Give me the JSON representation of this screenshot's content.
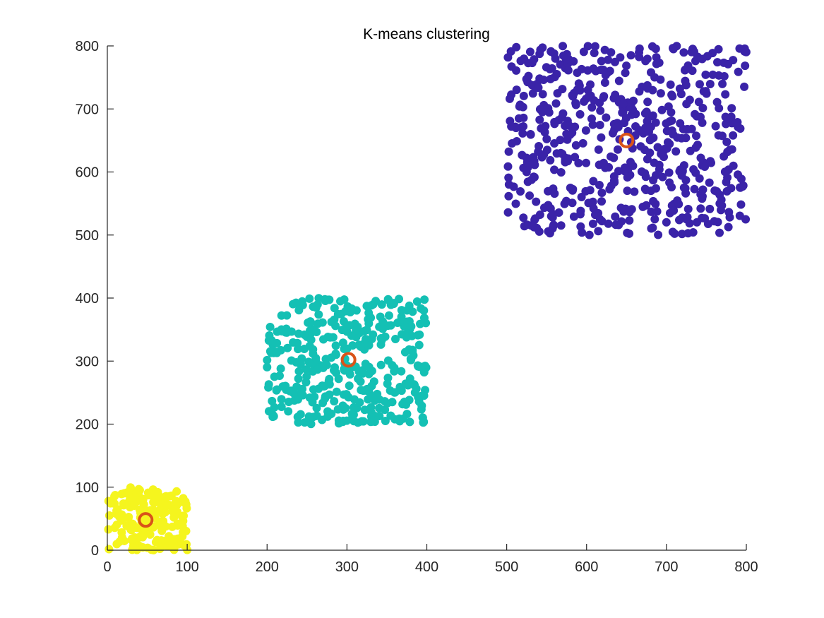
{
  "chart_data": {
    "type": "scatter",
    "title": "K-means clustering",
    "xlabel": "",
    "ylabel": "",
    "xlim": [
      0,
      800
    ],
    "ylim": [
      0,
      800
    ],
    "xticks": [
      0,
      100,
      200,
      300,
      400,
      500,
      600,
      700,
      800
    ],
    "yticks": [
      0,
      100,
      200,
      300,
      400,
      500,
      600,
      700,
      800
    ],
    "grid": false,
    "legend": "none",
    "clusters": [
      {
        "color": "#f5f51e",
        "x_range": [
          0,
          100
        ],
        "y_range": [
          0,
          100
        ],
        "approx_points": 180,
        "centroid": [
          48,
          48
        ]
      },
      {
        "color": "#14c0b4",
        "x_range": [
          200,
          400
        ],
        "y_range": [
          200,
          400
        ],
        "approx_points": 380,
        "centroid": [
          302,
          302
        ]
      },
      {
        "color": "#3a23a8",
        "x_range": [
          500,
          800
        ],
        "y_range": [
          500,
          800
        ],
        "approx_points": 560,
        "centroid": [
          650,
          650
        ]
      }
    ],
    "centroid_style": {
      "color": "#d95319",
      "marker": "ring"
    }
  }
}
